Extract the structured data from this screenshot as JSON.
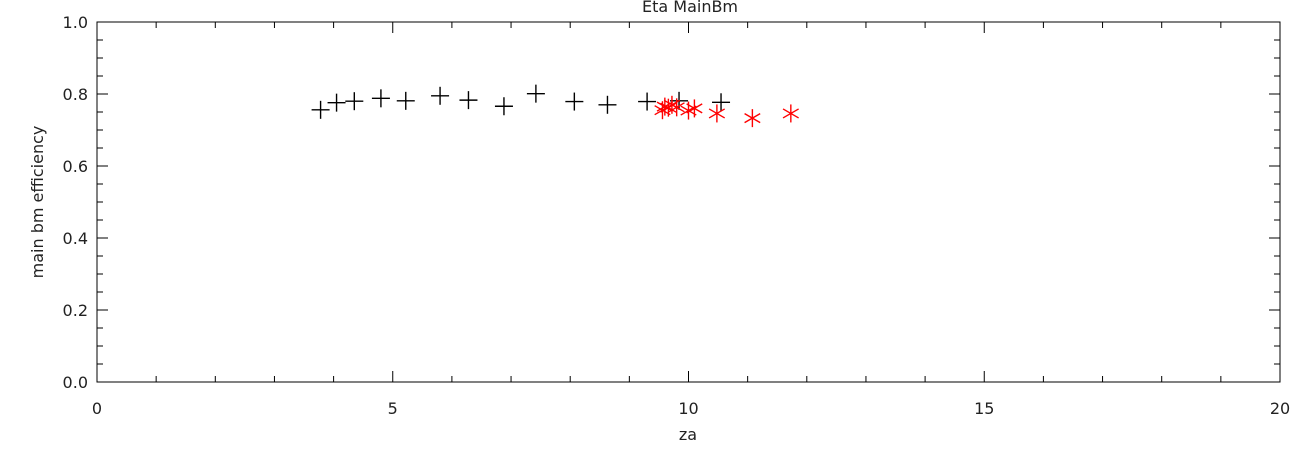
{
  "chart_data": {
    "type": "scatter",
    "title": "Eta MainBm",
    "xlabel": "za",
    "ylabel": "main bm efficiency",
    "xlim": [
      0,
      20
    ],
    "ylim": [
      0.0,
      1.0
    ],
    "x_ticks": [
      "0",
      "5",
      "10",
      "15",
      "20"
    ],
    "y_ticks": [
      "0.0",
      "0.2",
      "0.4",
      "0.6",
      "0.8",
      "1.0"
    ],
    "grid": false,
    "series": [
      {
        "marker": "plus",
        "color": "#000000",
        "points": [
          [
            3.78,
            0.756
          ],
          [
            4.05,
            0.776
          ],
          [
            4.35,
            0.78
          ],
          [
            4.8,
            0.788
          ],
          [
            5.22,
            0.781
          ],
          [
            5.8,
            0.795
          ],
          [
            6.28,
            0.783
          ],
          [
            6.88,
            0.766
          ],
          [
            7.42,
            0.801
          ],
          [
            8.07,
            0.779
          ],
          [
            8.63,
            0.77
          ],
          [
            9.3,
            0.779
          ],
          [
            9.84,
            0.781
          ],
          [
            10.55,
            0.777
          ]
        ]
      },
      {
        "marker": "asterisk",
        "color": "#ff0000",
        "points": [
          [
            9.56,
            0.755
          ],
          [
            9.6,
            0.765
          ],
          [
            9.66,
            0.762
          ],
          [
            9.72,
            0.77
          ],
          [
            9.8,
            0.763
          ],
          [
            10.0,
            0.754
          ],
          [
            10.1,
            0.76
          ],
          [
            10.48,
            0.746
          ],
          [
            11.08,
            0.733
          ],
          [
            11.73,
            0.746
          ]
        ]
      }
    ]
  }
}
